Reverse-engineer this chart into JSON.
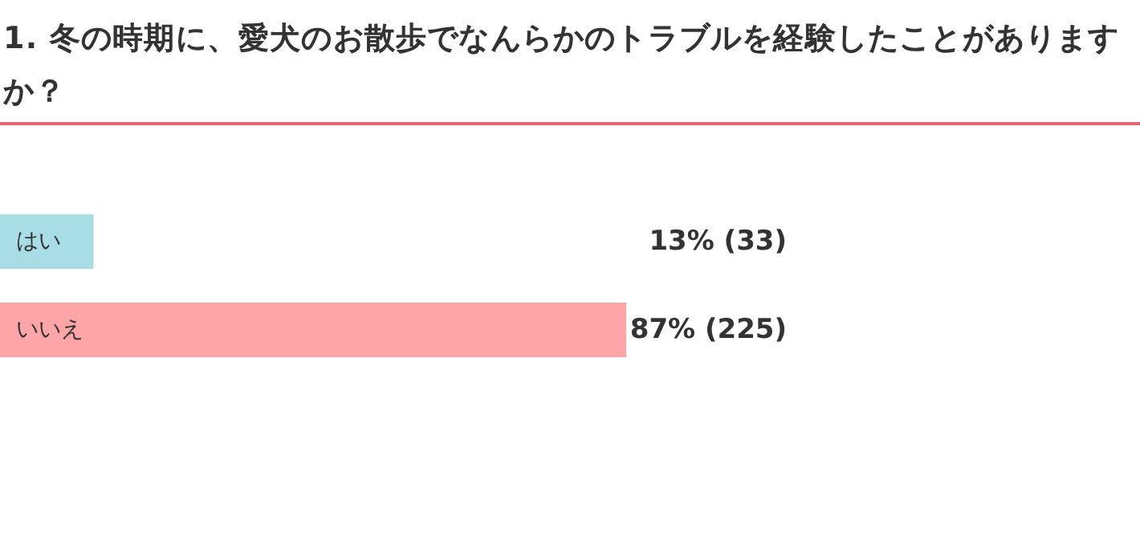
{
  "chart_data": {
    "type": "bar",
    "orientation": "horizontal",
    "title": "1. 冬の時期に、愛犬のお散歩でなんらかのトラブルを経験したことがありますか？",
    "categories": [
      "はい",
      "いいえ"
    ],
    "values": [
      13,
      87
    ],
    "colors": [
      "#a9dde6",
      "#fda5a7"
    ],
    "value_labels": [
      "13% (33)",
      "87% (225)"
    ]
  }
}
